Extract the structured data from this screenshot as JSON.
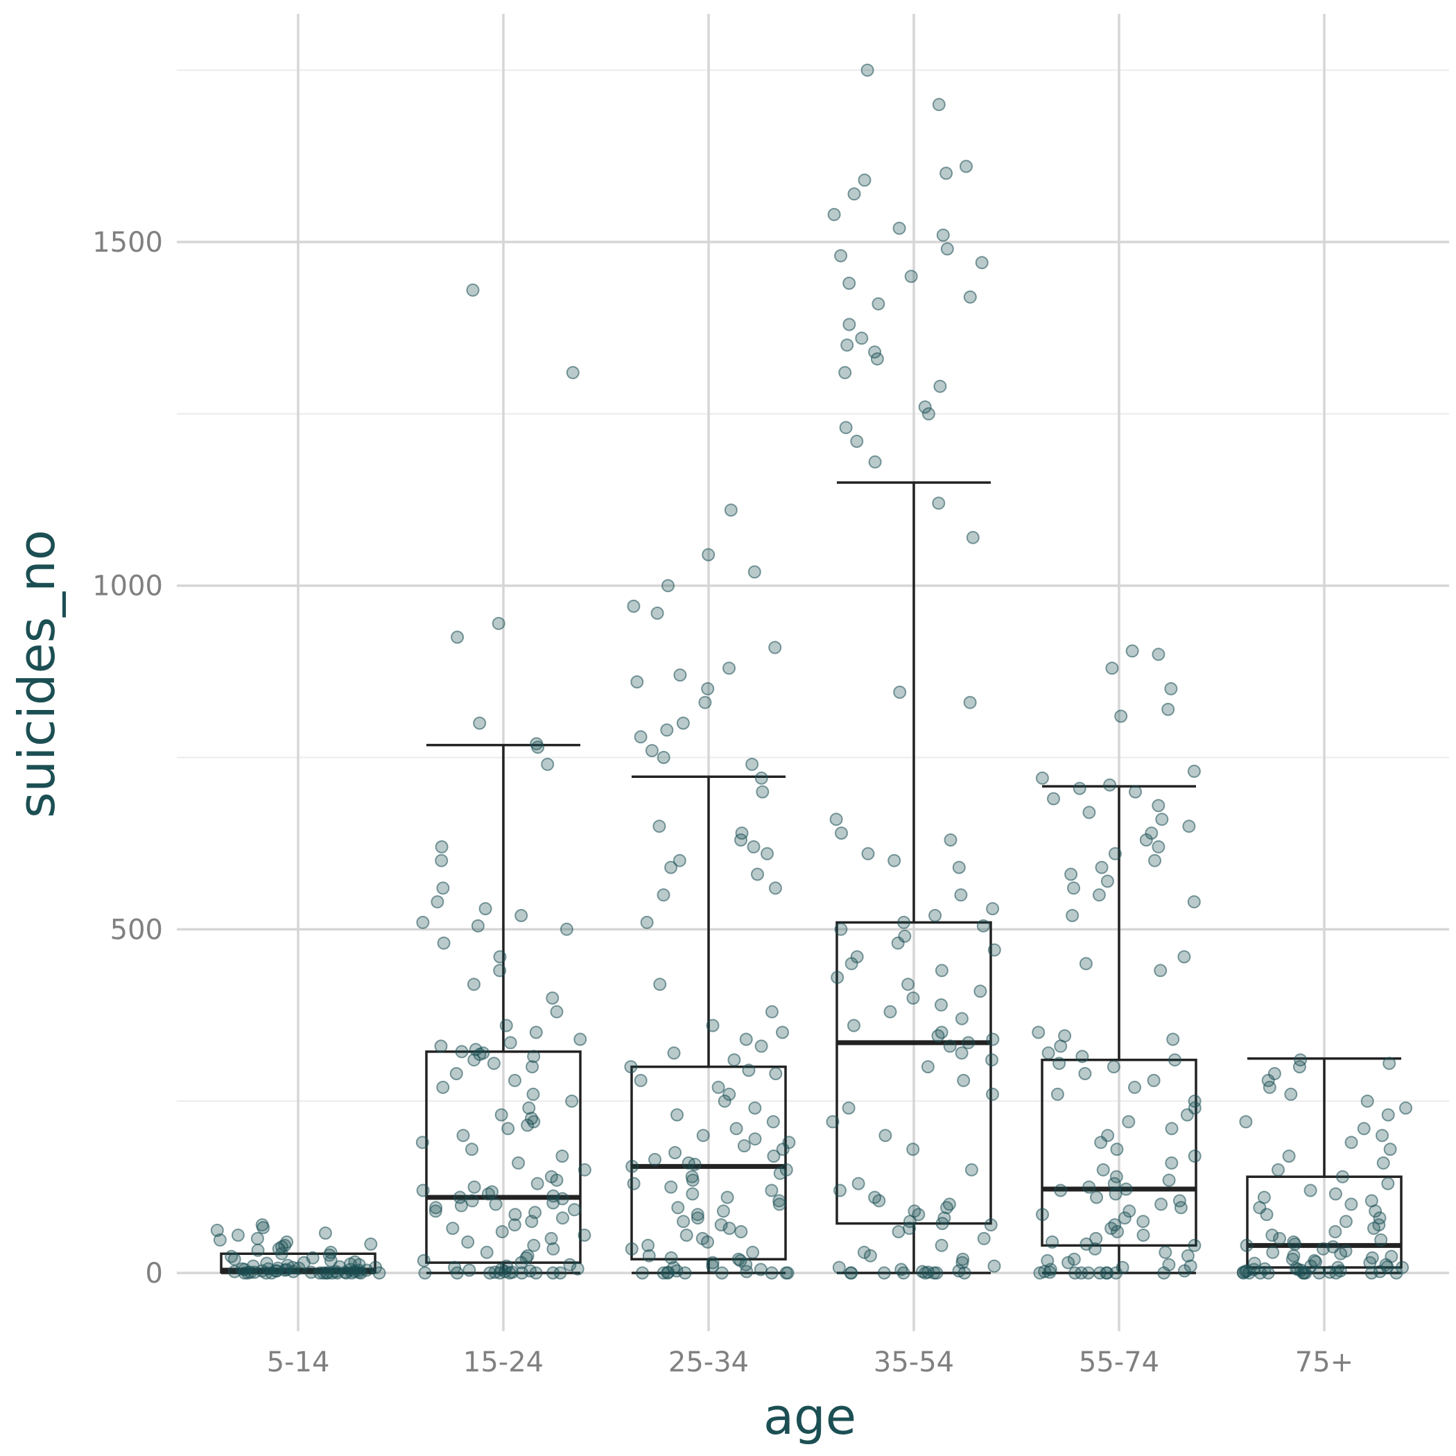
{
  "chart_data": {
    "type": "boxplot",
    "xlabel": "age",
    "ylabel": "suicides_no",
    "ylim": [
      -100,
      1750
    ],
    "y_major_ticks": [
      0,
      500,
      1000,
      1500
    ],
    "y_tick_labels": [
      "0",
      "500",
      "1000",
      "1500"
    ],
    "y_minor_ticks": [
      250,
      750,
      1250,
      1750
    ],
    "grid": true,
    "point_color": "#1c4f53",
    "categories": [
      "5-14",
      "15-24",
      "25-34",
      "35-54",
      "55-74",
      "75+"
    ],
    "boxes": [
      {
        "category": "5-14",
        "lower_whisker": 0,
        "q1": 1,
        "median": 4,
        "q3": 28,
        "upper_whisker": 28
      },
      {
        "category": "15-24",
        "lower_whisker": 0,
        "q1": 15,
        "median": 110,
        "q3": 322,
        "upper_whisker": 768
      },
      {
        "category": "25-34",
        "lower_whisker": 0,
        "q1": 20,
        "median": 155,
        "q3": 300,
        "upper_whisker": 722
      },
      {
        "category": "35-54",
        "lower_whisker": 0,
        "q1": 72,
        "median": 335,
        "q3": 510,
        "upper_whisker": 1150
      },
      {
        "category": "55-74",
        "lower_whisker": 0,
        "q1": 40,
        "median": 122,
        "q3": 310,
        "upper_whisker": 708
      },
      {
        "category": "75+",
        "lower_whisker": 0,
        "q1": 8,
        "median": 40,
        "q3": 140,
        "upper_whisker": 312
      }
    ],
    "points": [
      {
        "category": "5-14",
        "values": [
          0,
          0,
          0,
          0,
          0,
          0,
          0,
          0,
          0,
          0,
          0,
          0,
          0,
          0,
          1,
          1,
          1,
          1,
          1,
          2,
          2,
          2,
          2,
          3,
          3,
          3,
          4,
          4,
          4,
          5,
          5,
          5,
          6,
          6,
          7,
          7,
          8,
          8,
          9,
          10,
          11,
          12,
          13,
          14,
          15,
          16,
          18,
          20,
          22,
          24,
          26,
          28,
          30,
          33,
          35,
          38,
          40,
          42,
          45,
          48,
          50,
          55,
          58,
          62,
          66,
          70
        ]
      },
      {
        "category": "15-24",
        "values": [
          0,
          0,
          0,
          0,
          0,
          0,
          0,
          0,
          0,
          1,
          1,
          2,
          3,
          4,
          5,
          6,
          8,
          10,
          12,
          15,
          18,
          22,
          25,
          30,
          35,
          40,
          45,
          50,
          55,
          60,
          65,
          70,
          75,
          80,
          85,
          88,
          90,
          92,
          95,
          98,
          100,
          102,
          105,
          108,
          110,
          112,
          115,
          118,
          120,
          125,
          130,
          135,
          140,
          150,
          160,
          170,
          180,
          190,
          200,
          210,
          215,
          220,
          225,
          230,
          240,
          250,
          260,
          270,
          280,
          290,
          300,
          305,
          310,
          315,
          318,
          320,
          322,
          325,
          330,
          335,
          340,
          350,
          360,
          380,
          400,
          420,
          440,
          460,
          480,
          500,
          505,
          510,
          520,
          530,
          540,
          560,
          600,
          620,
          740,
          765,
          770,
          800,
          925,
          945,
          1310,
          1430
        ]
      },
      {
        "category": "25-34",
        "values": [
          0,
          0,
          0,
          0,
          0,
          0,
          0,
          0,
          1,
          2,
          3,
          5,
          8,
          10,
          12,
          15,
          18,
          20,
          22,
          25,
          30,
          35,
          40,
          45,
          50,
          55,
          60,
          65,
          70,
          75,
          80,
          85,
          90,
          95,
          100,
          105,
          110,
          115,
          120,
          125,
          130,
          135,
          140,
          145,
          150,
          155,
          158,
          160,
          165,
          170,
          175,
          180,
          185,
          190,
          195,
          200,
          210,
          220,
          230,
          240,
          250,
          260,
          270,
          280,
          290,
          295,
          300,
          310,
          320,
          330,
          340,
          350,
          360,
          380,
          420,
          510,
          550,
          560,
          580,
          590,
          600,
          610,
          620,
          630,
          640,
          650,
          700,
          720,
          740,
          750,
          760,
          780,
          790,
          800,
          830,
          850,
          860,
          870,
          880,
          910,
          960,
          970,
          1000,
          1020,
          1045,
          1110
        ]
      },
      {
        "category": "35-54",
        "values": [
          0,
          0,
          0,
          0,
          0,
          0,
          0,
          0,
          1,
          2,
          3,
          5,
          8,
          10,
          15,
          20,
          25,
          30,
          40,
          50,
          60,
          65,
          70,
          72,
          75,
          80,
          85,
          90,
          95,
          100,
          105,
          110,
          120,
          130,
          150,
          180,
          200,
          220,
          240,
          260,
          280,
          300,
          310,
          320,
          330,
          335,
          340,
          345,
          350,
          360,
          370,
          380,
          390,
          400,
          410,
          420,
          430,
          440,
          450,
          460,
          470,
          480,
          490,
          500,
          505,
          510,
          520,
          530,
          550,
          590,
          600,
          610,
          630,
          640,
          660,
          830,
          845,
          1070,
          1120,
          1180,
          1210,
          1230,
          1250,
          1260,
          1290,
          1310,
          1330,
          1340,
          1350,
          1360,
          1380,
          1410,
          1420,
          1440,
          1450,
          1470,
          1480,
          1490,
          1510,
          1520,
          1540,
          1570,
          1590,
          1600,
          1610,
          1700,
          1750
        ]
      },
      {
        "category": "55-74",
        "values": [
          0,
          0,
          0,
          0,
          0,
          0,
          0,
          0,
          0,
          1,
          2,
          3,
          5,
          8,
          10,
          12,
          15,
          18,
          20,
          25,
          30,
          35,
          40,
          42,
          45,
          50,
          55,
          60,
          65,
          70,
          75,
          80,
          85,
          90,
          95,
          100,
          105,
          110,
          115,
          120,
          122,
          125,
          130,
          135,
          140,
          150,
          160,
          170,
          180,
          190,
          200,
          210,
          220,
          230,
          240,
          250,
          260,
          270,
          280,
          290,
          300,
          305,
          310,
          315,
          320,
          330,
          340,
          345,
          350,
          440,
          450,
          460,
          520,
          540,
          550,
          560,
          570,
          580,
          590,
          600,
          610,
          620,
          630,
          640,
          650,
          660,
          670,
          680,
          690,
          700,
          705,
          710,
          720,
          730,
          810,
          820,
          850,
          880,
          900,
          905
        ]
      },
      {
        "category": "75+",
        "values": [
          0,
          0,
          0,
          0,
          0,
          0,
          0,
          0,
          0,
          0,
          0,
          1,
          1,
          2,
          2,
          3,
          3,
          4,
          5,
          5,
          6,
          7,
          8,
          8,
          9,
          10,
          12,
          14,
          15,
          16,
          18,
          20,
          22,
          24,
          25,
          28,
          30,
          32,
          35,
          38,
          40,
          42,
          45,
          48,
          50,
          55,
          60,
          65,
          70,
          75,
          80,
          85,
          90,
          95,
          100,
          105,
          110,
          115,
          120,
          130,
          140,
          150,
          160,
          170,
          180,
          190,
          200,
          210,
          220,
          230,
          240,
          250,
          260,
          270,
          280,
          290,
          300,
          305,
          310
        ]
      }
    ]
  }
}
